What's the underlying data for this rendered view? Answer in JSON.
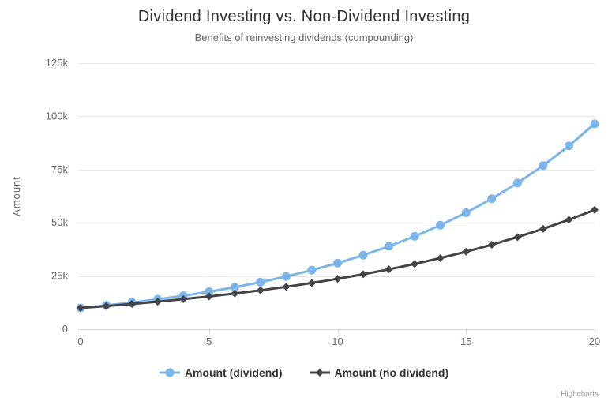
{
  "chart_data": {
    "type": "line",
    "title": "Dividend Investing vs. Non-Dividend Investing",
    "subtitle": "Benefits of reinvesting dividends (compounding)",
    "xlabel": "",
    "ylabel": "Amount",
    "xlim": [
      0,
      20
    ],
    "ylim": [
      0,
      125000
    ],
    "grid": true,
    "legend_position": "bottom",
    "colors": {
      "grid": "#e6e6e6",
      "axis_line": "#ccd6eb",
      "tick_label": "#666666",
      "title": "#333333",
      "subtitle": "#666666"
    },
    "x": [
      0,
      1,
      2,
      3,
      4,
      5,
      6,
      7,
      8,
      9,
      10,
      11,
      12,
      13,
      14,
      15,
      16,
      17,
      18,
      19,
      20
    ],
    "xticks": [
      {
        "value": 0,
        "label": "0"
      },
      {
        "value": 5,
        "label": "5"
      },
      {
        "value": 10,
        "label": "10"
      },
      {
        "value": 15,
        "label": "15"
      },
      {
        "value": 20,
        "label": "20"
      }
    ],
    "yticks": [
      {
        "value": 0,
        "label": "0"
      },
      {
        "value": 25000,
        "label": "25k"
      },
      {
        "value": 50000,
        "label": "50k"
      },
      {
        "value": 75000,
        "label": "75k"
      },
      {
        "value": 100000,
        "label": "100k"
      },
      {
        "value": 125000,
        "label": "125k"
      }
    ],
    "series": [
      {
        "name": "Amount (dividend)",
        "color": "#7cb5ec",
        "marker": "circle",
        "values": [
          10000,
          11200,
          12544,
          14049,
          15735,
          17623,
          19738,
          22107,
          24760,
          27731,
          31058,
          34785,
          38960,
          43635,
          48871,
          54736,
          61304,
          68660,
          76900,
          86129,
          96463
        ]
      },
      {
        "name": "Amount (no dividend)",
        "color": "#434348",
        "marker": "diamond",
        "values": [
          10000,
          10900,
          11881,
          12950,
          14116,
          15386,
          16771,
          18280,
          19926,
          21719,
          23674,
          25804,
          28127,
          30658,
          33417,
          36425,
          39703,
          43276,
          47171,
          51417,
          56044
        ]
      }
    ],
    "credits": "Highcharts"
  }
}
